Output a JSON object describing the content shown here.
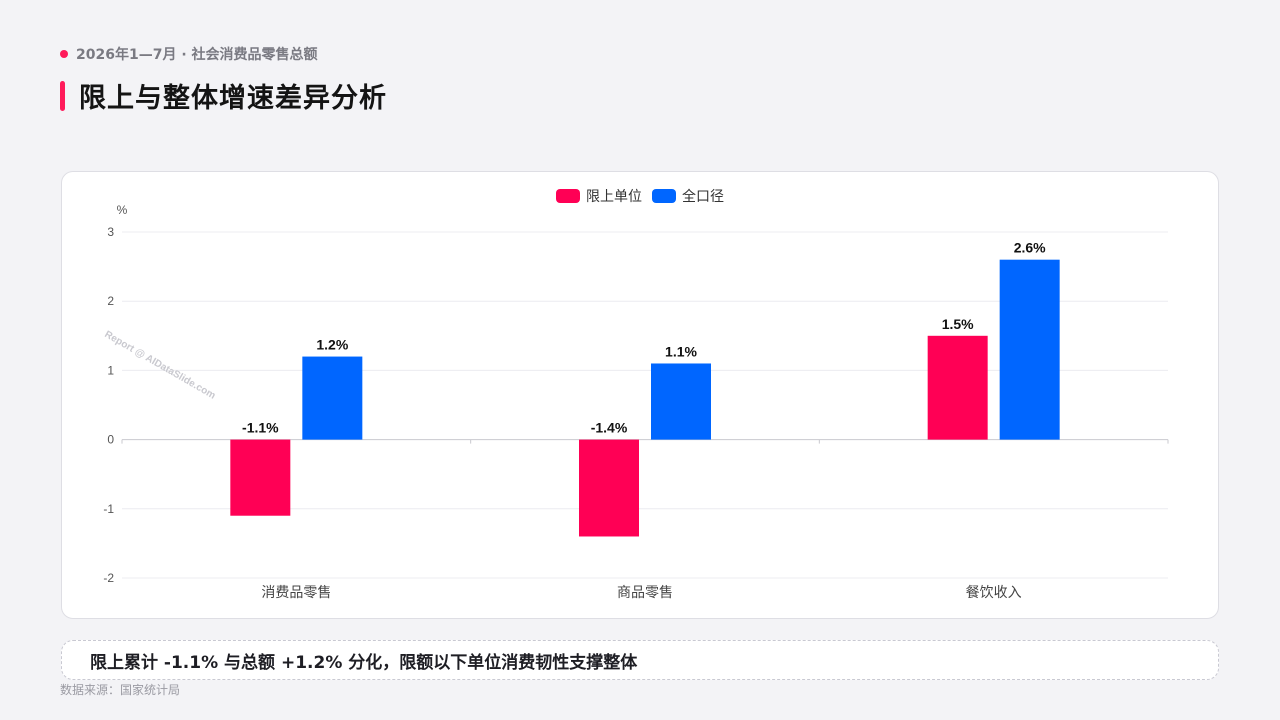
{
  "header": {
    "eyebrow": "2026年1—7月 · 社会消费品零售总额",
    "title": "限上与整体增速差异分析"
  },
  "colors": {
    "accent": "#ff1a5a",
    "series_a": "#ff0055",
    "series_b": "#0066ff"
  },
  "chart_data": {
    "type": "bar",
    "categories": [
      "消费品零售",
      "商品零售",
      "餐饮收入"
    ],
    "series": [
      {
        "name": "限上单位",
        "values": [
          -1.1,
          -1.4,
          1.5
        ],
        "labels": [
          "-1.1%",
          "-1.4%",
          "1.5%"
        ]
      },
      {
        "name": "全口径",
        "values": [
          1.2,
          1.1,
          2.6
        ],
        "labels": [
          "1.2%",
          "1.1%",
          "2.6%"
        ]
      }
    ],
    "ylabel": "%",
    "ylim": [
      -2,
      3
    ],
    "yticks": [
      "3",
      "2",
      "1",
      "0",
      "-1",
      "-2"
    ],
    "grid": true,
    "legend": "top-center",
    "watermark": "Report @ AIDataSlide.com"
  },
  "insight": "限上累计 -1.1% 与总额 +1.2% 分化，限额以下单位消费韧性支撑整体",
  "source": "数据来源：国家统计局"
}
